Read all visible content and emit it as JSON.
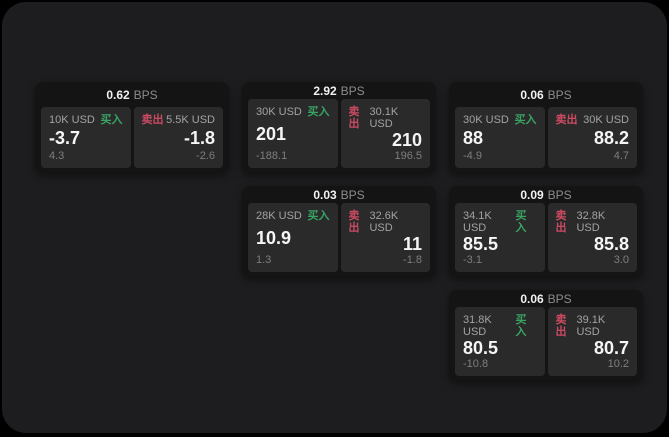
{
  "colors": {
    "panel_bg": "#1d1d1f",
    "card_bg": "#141414",
    "subpanel_bg": "#2a2a2a",
    "buy_green": "#38a463",
    "sell_red": "#cc4a63"
  },
  "labels": {
    "bps_unit": "BPS",
    "buy": "买入",
    "sell": "卖出"
  },
  "cards": [
    {
      "grid": {
        "row": 1,
        "col": 1
      },
      "bps_value": "0.62",
      "bps_unit": "BPS",
      "buy": {
        "amount": "10K USD",
        "side_label": "买入",
        "value": "-3.7",
        "sub_value": "4.3"
      },
      "sell": {
        "side_label": "卖出",
        "amount": "5.5K USD",
        "value": "-1.8",
        "sub_value": "-2.6"
      }
    },
    {
      "grid": {
        "row": 1,
        "col": 2
      },
      "bps_value": "2.92",
      "bps_unit": "BPS",
      "buy": {
        "amount": "30K USD",
        "side_label": "买入",
        "value": "201",
        "sub_value": "-188.1"
      },
      "sell": {
        "side_label": "卖出",
        "amount": "30.1K USD",
        "value": "210",
        "sub_value": "196.5"
      }
    },
    {
      "grid": {
        "row": 1,
        "col": 3
      },
      "bps_value": "0.06",
      "bps_unit": "BPS",
      "buy": {
        "amount": "30K USD",
        "side_label": "买入",
        "value": "88",
        "sub_value": "-4.9"
      },
      "sell": {
        "side_label": "卖出",
        "amount": "30K USD",
        "value": "88.2",
        "sub_value": "4.7"
      }
    },
    {
      "grid": {
        "row": 2,
        "col": 2
      },
      "bps_value": "0.03",
      "bps_unit": "BPS",
      "buy": {
        "amount": "28K USD",
        "side_label": "买入",
        "value": "10.9",
        "sub_value": "1.3"
      },
      "sell": {
        "side_label": "卖出",
        "amount": "32.6K USD",
        "value": "11",
        "sub_value": "-1.8"
      }
    },
    {
      "grid": {
        "row": 2,
        "col": 3
      },
      "bps_value": "0.09",
      "bps_unit": "BPS",
      "buy": {
        "amount": "34.1K USD",
        "side_label": "买入",
        "value": "85.5",
        "sub_value": "-3.1"
      },
      "sell": {
        "side_label": "卖出",
        "amount": "32.8K USD",
        "value": "85.8",
        "sub_value": "3.0"
      }
    },
    {
      "grid": {
        "row": 3,
        "col": 3
      },
      "bps_value": "0.06",
      "bps_unit": "BPS",
      "buy": {
        "amount": "31.8K USD",
        "side_label": "买入",
        "value": "80.5",
        "sub_value": "-10.8"
      },
      "sell": {
        "side_label": "卖出",
        "amount": "39.1K USD",
        "value": "80.7",
        "sub_value": "10.2"
      }
    }
  ]
}
